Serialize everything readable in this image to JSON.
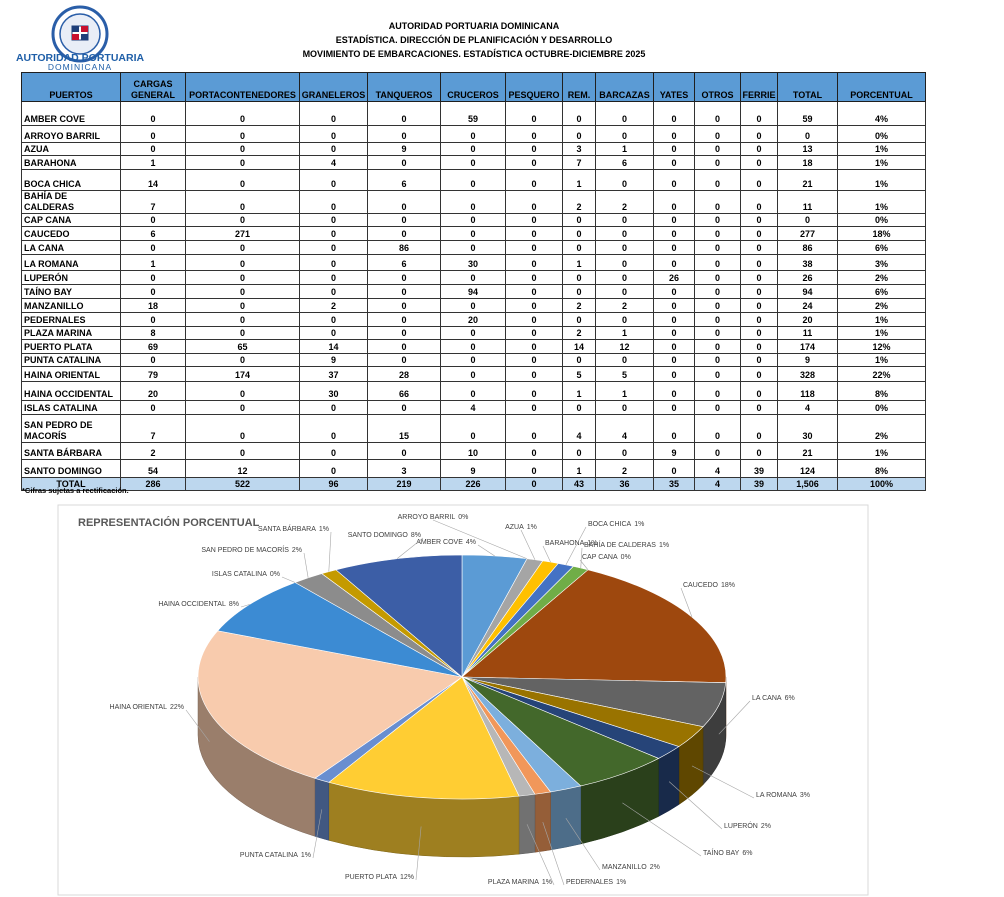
{
  "header": {
    "logo_text": [
      "AUTORIDAD PORTUARIA",
      "DOMINICANA"
    ],
    "title_lines": [
      "AUTORIDAD PORTUARIA DOMINICANA",
      "ESTADÍSTICA. DIRECCIÓN DE PLANIFICACIÓN Y DESARROLLO",
      "MOVIMIENTO DE EMBARCACIONES. ESTADÍSTICA OCTUBRE-DICIEMBRE  2025"
    ]
  },
  "table": {
    "columns": [
      "PUERTOS",
      "CARGAS GENERAL",
      "PORTACONTENEDORES",
      "GRANELEROS",
      "TANQUEROS",
      "CRUCEROS",
      "PESQUERO",
      "REM.",
      "BARCAZAS",
      "YATES",
      "OTROS",
      "FERRIE",
      "TOTAL",
      "PORCENTUAL"
    ],
    "rows": [
      [
        "AMBER COVE",
        0,
        0,
        0,
        0,
        59,
        0,
        0,
        0,
        0,
        0,
        0,
        59,
        "4%"
      ],
      [
        "ARROYO BARRIL",
        0,
        0,
        0,
        0,
        0,
        0,
        0,
        0,
        0,
        0,
        0,
        0,
        "0%"
      ],
      [
        "AZUA",
        0,
        0,
        0,
        9,
        0,
        0,
        3,
        1,
        0,
        0,
        0,
        13,
        "1%"
      ],
      [
        "BARAHONA",
        1,
        0,
        4,
        0,
        0,
        0,
        7,
        6,
        0,
        0,
        0,
        18,
        "1%"
      ],
      [
        "BOCA CHICA",
        14,
        0,
        0,
        6,
        0,
        0,
        1,
        0,
        0,
        0,
        0,
        21,
        "1%"
      ],
      [
        "BAHÍA DE CALDERAS",
        7,
        0,
        0,
        0,
        0,
        0,
        2,
        2,
        0,
        0,
        0,
        11,
        "1%"
      ],
      [
        "CAP CANA",
        0,
        0,
        0,
        0,
        0,
        0,
        0,
        0,
        0,
        0,
        0,
        0,
        "0%"
      ],
      [
        "CAUCEDO",
        6,
        271,
        0,
        0,
        0,
        0,
        0,
        0,
        0,
        0,
        0,
        277,
        "18%"
      ],
      [
        "LA CANA",
        0,
        0,
        0,
        86,
        0,
        0,
        0,
        0,
        0,
        0,
        0,
        86,
        "6%"
      ],
      [
        "LA ROMANA",
        1,
        0,
        0,
        6,
        30,
        0,
        1,
        0,
        0,
        0,
        0,
        38,
        "3%"
      ],
      [
        "LUPERÓN",
        0,
        0,
        0,
        0,
        0,
        0,
        0,
        0,
        26,
        0,
        0,
        26,
        "2%"
      ],
      [
        "TAÍNO BAY",
        0,
        0,
        0,
        0,
        94,
        0,
        0,
        0,
        0,
        0,
        0,
        94,
        "6%"
      ],
      [
        "MANZANILLO",
        18,
        0,
        2,
        0,
        0,
        0,
        2,
        2,
        0,
        0,
        0,
        24,
        "2%"
      ],
      [
        "PEDERNALES",
        0,
        0,
        0,
        0,
        20,
        0,
        0,
        0,
        0,
        0,
        0,
        20,
        "1%"
      ],
      [
        "PLAZA MARINA",
        8,
        0,
        0,
        0,
        0,
        0,
        2,
        1,
        0,
        0,
        0,
        11,
        "1%"
      ],
      [
        "PUERTO PLATA",
        69,
        65,
        14,
        0,
        0,
        0,
        14,
        12,
        0,
        0,
        0,
        174,
        "12%"
      ],
      [
        "PUNTA CATALINA",
        0,
        0,
        9,
        0,
        0,
        0,
        0,
        0,
        0,
        0,
        0,
        9,
        "1%"
      ],
      [
        "HAINA ORIENTAL",
        79,
        174,
        37,
        28,
        0,
        0,
        5,
        5,
        0,
        0,
        0,
        328,
        "22%"
      ],
      [
        "HAINA OCCIDENTAL",
        20,
        0,
        30,
        66,
        0,
        0,
        1,
        1,
        0,
        0,
        0,
        118,
        "8%"
      ],
      [
        "ISLAS CATALINA",
        0,
        0,
        0,
        0,
        4,
        0,
        0,
        0,
        0,
        0,
        0,
        4,
        "0%"
      ],
      [
        "SAN PEDRO DE MACORÍS",
        7,
        0,
        0,
        15,
        0,
        0,
        4,
        4,
        0,
        0,
        0,
        30,
        "2%"
      ],
      [
        "SANTA BÁRBARA",
        2,
        0,
        0,
        0,
        10,
        0,
        0,
        0,
        9,
        0,
        0,
        21,
        "1%"
      ],
      [
        "SANTO DOMINGO",
        54,
        12,
        0,
        3,
        9,
        0,
        1,
        2,
        0,
        4,
        39,
        124,
        "8%"
      ],
      [
        "TOTAL",
        286,
        522,
        96,
        219,
        226,
        0,
        43,
        36,
        35,
        4,
        39,
        "1,506",
        "100%"
      ]
    ]
  },
  "note": "*Cifras sujetas a rectificación.",
  "chart_data": {
    "type": "pie",
    "title": "REPRESENTACIÓN PORCENTUAL",
    "categories": [
      "AMBER COVE",
      "ARROYO BARRIL",
      "AZUA",
      "BARAHONA",
      "BOCA CHICA",
      "BAHÍA DE CALDERAS",
      "CAP CANA",
      "CAUCEDO",
      "LA CANA",
      "LA ROMANA",
      "LUPERÓN",
      "TAÍNO BAY",
      "MANZANILLO",
      "PEDERNALES",
      "PLAZA MARINA",
      "PUERTO PLATA",
      "PUNTA CATALINA",
      "HAINA ORIENTAL",
      "HAINA OCCIDENTAL",
      "ISLAS CATALINA",
      "SAN PEDRO DE MACORÍS",
      "SANTA BÁRBARA",
      "SANTO DOMINGO"
    ],
    "values": [
      4,
      0,
      1,
      1,
      1,
      1,
      0,
      18,
      6,
      3,
      2,
      6,
      2,
      1,
      1,
      12,
      1,
      22,
      8,
      0,
      2,
      1,
      8
    ],
    "value_labels": [
      "4%",
      "0%",
      "1%",
      "1%",
      "1%",
      "1%",
      "0%",
      "18%",
      "6%",
      "3%",
      "2%",
      "6%",
      "2%",
      "1%",
      "1%",
      "12%",
      "1%",
      "22%",
      "8%",
      "0%",
      "2%",
      "1%",
      "8%"
    ],
    "colors": [
      "#5b9bd5",
      "#ed7d31",
      "#a5a5a5",
      "#ffc000",
      "#4472c4",
      "#70ad47",
      "#255e91",
      "#9e480e",
      "#636363",
      "#997300",
      "#264478",
      "#43682b",
      "#7cafdd",
      "#f1975a",
      "#b7b7b7",
      "#ffcd33",
      "#698ed0",
      "#f8cbad",
      "#3c8bd3",
      "#e07b2a",
      "#8c8c8c",
      "#c49a00",
      "#3c5ea6"
    ]
  }
}
